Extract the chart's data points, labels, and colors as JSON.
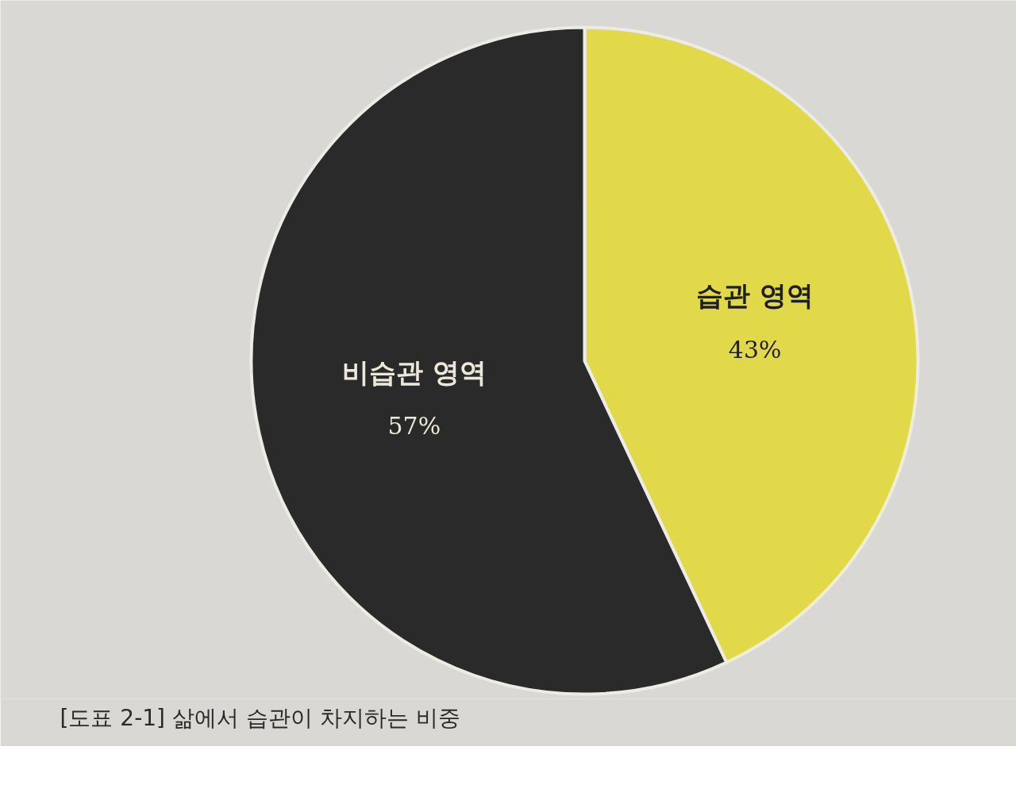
{
  "chart_data": {
    "type": "pie",
    "title": "[도표 2-1] 삶에서 습관이 차지하는 비중",
    "categories": [
      "습관 영역",
      "비습관 영역"
    ],
    "values": [
      43,
      57
    ],
    "colors": [
      "#e2d94a",
      "#2a2a2a"
    ],
    "value_labels": [
      "43%",
      "57%"
    ]
  }
}
